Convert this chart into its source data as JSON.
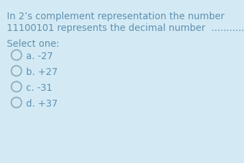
{
  "bg_color": "#d3eaf5",
  "question_line1": "In 2’s complement representation the number",
  "question_line2": "11100101 represents the decimal number  ............",
  "select_label": "Select one:",
  "options": [
    {
      "letter": "a.",
      "value": "-27"
    },
    {
      "letter": "b.",
      "value": "+27"
    },
    {
      "letter": "c.",
      "value": "-31"
    },
    {
      "letter": "d.",
      "value": "+37"
    }
  ],
  "text_color": "#6090b0",
  "font_size_question": 9.8,
  "font_size_options": 9.8,
  "circle_color": "#8aaabb",
  "circle_linewidth": 1.3
}
